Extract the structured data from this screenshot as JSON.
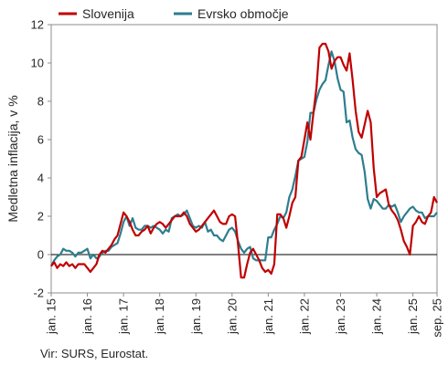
{
  "source_note": "Vir: SURS, Eurostat.",
  "chart_data": {
    "type": "line",
    "title": "",
    "xlabel": "",
    "ylabel": "Medletna inflacija, v %",
    "ylim": [
      -2,
      12
    ],
    "yticks": [
      -2,
      0,
      2,
      4,
      6,
      8,
      10,
      12
    ],
    "x_start": "2015-01",
    "x_end": "2025-09",
    "x_ticks": [
      {
        "label": "jan. 15",
        "date": "2015-01"
      },
      {
        "label": "jan. 16",
        "date": "2016-01"
      },
      {
        "label": "jan. 17",
        "date": "2017-01"
      },
      {
        "label": "jan. 18",
        "date": "2018-01"
      },
      {
        "label": "jan. 19",
        "date": "2019-01"
      },
      {
        "label": "jan. 20",
        "date": "2020-01"
      },
      {
        "label": "jan. 21",
        "date": "2021-01"
      },
      {
        "label": "jan. 22",
        "date": "2022-01"
      },
      {
        "label": "jan. 23",
        "date": "2023-01"
      },
      {
        "label": "jan. 24",
        "date": "2024-01"
      },
      {
        "label": "jan. 25",
        "date": "2025-01"
      },
      {
        "label": "sep. 25",
        "date": "2025-09"
      }
    ],
    "grid": false,
    "zero_line": true,
    "legend_position": "top",
    "series": [
      {
        "name": "Slovenija",
        "color": "#C00000",
        "points": [
          [
            "2015-01",
            -0.6
          ],
          [
            "2015-02",
            -0.4
          ],
          [
            "2015-03",
            -0.7
          ],
          [
            "2015-04",
            -0.5
          ],
          [
            "2015-05",
            -0.6
          ],
          [
            "2015-06",
            -0.4
          ],
          [
            "2015-07",
            -0.6
          ],
          [
            "2015-08",
            -0.5
          ],
          [
            "2015-09",
            -0.7
          ],
          [
            "2015-10",
            -0.5
          ],
          [
            "2015-11",
            -0.5
          ],
          [
            "2015-12",
            -0.5
          ],
          [
            "2016-01",
            -0.7
          ],
          [
            "2016-02",
            -0.9
          ],
          [
            "2016-03",
            -0.7
          ],
          [
            "2016-04",
            -0.5
          ],
          [
            "2016-05",
            0.0
          ],
          [
            "2016-06",
            0.2
          ],
          [
            "2016-07",
            0.1
          ],
          [
            "2016-08",
            0.3
          ],
          [
            "2016-09",
            0.5
          ],
          [
            "2016-10",
            0.8
          ],
          [
            "2016-11",
            1.0
          ],
          [
            "2016-12",
            1.6
          ],
          [
            "2017-01",
            2.2
          ],
          [
            "2017-02",
            2.0
          ],
          [
            "2017-03",
            1.7
          ],
          [
            "2017-04",
            1.3
          ],
          [
            "2017-05",
            1.0
          ],
          [
            "2017-06",
            1.0
          ],
          [
            "2017-07",
            1.2
          ],
          [
            "2017-08",
            1.3
          ],
          [
            "2017-09",
            1.5
          ],
          [
            "2017-10",
            1.1
          ],
          [
            "2017-11",
            1.4
          ],
          [
            "2017-12",
            1.6
          ],
          [
            "2018-01",
            1.7
          ],
          [
            "2018-02",
            1.6
          ],
          [
            "2018-03",
            1.4
          ],
          [
            "2018-04",
            1.6
          ],
          [
            "2018-05",
            1.8
          ],
          [
            "2018-06",
            2.0
          ],
          [
            "2018-07",
            2.0
          ],
          [
            "2018-08",
            2.0
          ],
          [
            "2018-09",
            2.2
          ],
          [
            "2018-10",
            2.0
          ],
          [
            "2018-11",
            1.6
          ],
          [
            "2018-12",
            1.4
          ],
          [
            "2019-01",
            1.2
          ],
          [
            "2019-02",
            1.3
          ],
          [
            "2019-03",
            1.5
          ],
          [
            "2019-04",
            1.7
          ],
          [
            "2019-05",
            1.9
          ],
          [
            "2019-06",
            2.1
          ],
          [
            "2019-07",
            2.3
          ],
          [
            "2019-08",
            2.0
          ],
          [
            "2019-09",
            1.7
          ],
          [
            "2019-10",
            1.6
          ],
          [
            "2019-11",
            1.6
          ],
          [
            "2019-12",
            2.0
          ],
          [
            "2020-01",
            2.1
          ],
          [
            "2020-02",
            2.0
          ],
          [
            "2020-03",
            0.5
          ],
          [
            "2020-04",
            -1.2
          ],
          [
            "2020-05",
            -1.2
          ],
          [
            "2020-06",
            -0.5
          ],
          [
            "2020-07",
            0.1
          ],
          [
            "2020-08",
            0.3
          ],
          [
            "2020-09",
            0.0
          ],
          [
            "2020-10",
            -0.3
          ],
          [
            "2020-11",
            -0.7
          ],
          [
            "2020-12",
            -0.9
          ],
          [
            "2021-01",
            -0.8
          ],
          [
            "2021-02",
            -1.0
          ],
          [
            "2021-03",
            -0.5
          ],
          [
            "2021-04",
            2.1
          ],
          [
            "2021-05",
            2.1
          ],
          [
            "2021-06",
            1.9
          ],
          [
            "2021-07",
            1.4
          ],
          [
            "2021-08",
            2.0
          ],
          [
            "2021-09",
            2.7
          ],
          [
            "2021-10",
            3.0
          ],
          [
            "2021-11",
            4.9
          ],
          [
            "2021-12",
            5.1
          ],
          [
            "2022-01",
            6.0
          ],
          [
            "2022-02",
            6.9
          ],
          [
            "2022-03",
            6.0
          ],
          [
            "2022-04",
            7.4
          ],
          [
            "2022-05",
            8.7
          ],
          [
            "2022-06",
            10.8
          ],
          [
            "2022-07",
            11.0
          ],
          [
            "2022-08",
            11.0
          ],
          [
            "2022-09",
            10.6
          ],
          [
            "2022-10",
            9.7
          ],
          [
            "2022-11",
            10.1
          ],
          [
            "2022-12",
            10.3
          ],
          [
            "2023-01",
            10.3
          ],
          [
            "2023-02",
            9.9
          ],
          [
            "2023-03",
            9.6
          ],
          [
            "2023-04",
            10.5
          ],
          [
            "2023-05",
            9.1
          ],
          [
            "2023-06",
            7.5
          ],
          [
            "2023-07",
            6.4
          ],
          [
            "2023-08",
            6.1
          ],
          [
            "2023-09",
            6.8
          ],
          [
            "2023-10",
            7.5
          ],
          [
            "2023-11",
            6.9
          ],
          [
            "2023-12",
            4.5
          ],
          [
            "2024-01",
            3.0
          ],
          [
            "2024-02",
            3.2
          ],
          [
            "2024-03",
            3.3
          ],
          [
            "2024-04",
            3.4
          ],
          [
            "2024-05",
            2.6
          ],
          [
            "2024-06",
            2.3
          ],
          [
            "2024-07",
            2.1
          ],
          [
            "2024-08",
            1.8
          ],
          [
            "2024-09",
            1.3
          ],
          [
            "2024-10",
            0.7
          ],
          [
            "2024-11",
            0.4
          ],
          [
            "2024-12",
            0.0
          ],
          [
            "2025-01",
            1.5
          ],
          [
            "2025-02",
            1.7
          ],
          [
            "2025-03",
            2.0
          ],
          [
            "2025-04",
            1.7
          ],
          [
            "2025-05",
            1.6
          ],
          [
            "2025-06",
            2.0
          ],
          [
            "2025-07",
            2.2
          ],
          [
            "2025-08",
            3.0
          ],
          [
            "2025-09",
            2.7
          ]
        ]
      },
      {
        "name": "Evrsko območje",
        "color": "#2E7D8F",
        "points": [
          [
            "2015-01",
            -0.6
          ],
          [
            "2015-02",
            -0.3
          ],
          [
            "2015-03",
            -0.1
          ],
          [
            "2015-04",
            0.0
          ],
          [
            "2015-05",
            0.3
          ],
          [
            "2015-06",
            0.2
          ],
          [
            "2015-07",
            0.2
          ],
          [
            "2015-08",
            0.1
          ],
          [
            "2015-09",
            -0.1
          ],
          [
            "2015-10",
            0.1
          ],
          [
            "2015-11",
            0.1
          ],
          [
            "2015-12",
            0.2
          ],
          [
            "2016-01",
            0.3
          ],
          [
            "2016-02",
            -0.2
          ],
          [
            "2016-03",
            0.0
          ],
          [
            "2016-04",
            -0.2
          ],
          [
            "2016-05",
            -0.1
          ],
          [
            "2016-06",
            0.1
          ],
          [
            "2016-07",
            0.2
          ],
          [
            "2016-08",
            0.2
          ],
          [
            "2016-09",
            0.4
          ],
          [
            "2016-10",
            0.5
          ],
          [
            "2016-11",
            0.6
          ],
          [
            "2016-12",
            1.1
          ],
          [
            "2017-01",
            1.7
          ],
          [
            "2017-02",
            2.0
          ],
          [
            "2017-03",
            1.5
          ],
          [
            "2017-04",
            1.9
          ],
          [
            "2017-05",
            1.4
          ],
          [
            "2017-06",
            1.3
          ],
          [
            "2017-07",
            1.3
          ],
          [
            "2017-08",
            1.5
          ],
          [
            "2017-09",
            1.5
          ],
          [
            "2017-10",
            1.4
          ],
          [
            "2017-11",
            1.5
          ],
          [
            "2017-12",
            1.4
          ],
          [
            "2018-01",
            1.3
          ],
          [
            "2018-02",
            1.1
          ],
          [
            "2018-03",
            1.3
          ],
          [
            "2018-04",
            1.2
          ],
          [
            "2018-05",
            1.9
          ],
          [
            "2018-06",
            2.0
          ],
          [
            "2018-07",
            2.1
          ],
          [
            "2018-08",
            2.0
          ],
          [
            "2018-09",
            2.1
          ],
          [
            "2018-10",
            2.3
          ],
          [
            "2018-11",
            1.9
          ],
          [
            "2018-12",
            1.5
          ],
          [
            "2019-01",
            1.4
          ],
          [
            "2019-02",
            1.5
          ],
          [
            "2019-03",
            1.4
          ],
          [
            "2019-04",
            1.7
          ],
          [
            "2019-05",
            1.2
          ],
          [
            "2019-06",
            1.3
          ],
          [
            "2019-07",
            1.0
          ],
          [
            "2019-08",
            1.0
          ],
          [
            "2019-09",
            0.8
          ],
          [
            "2019-10",
            0.7
          ],
          [
            "2019-11",
            1.0
          ],
          [
            "2019-12",
            1.3
          ],
          [
            "2020-01",
            1.4
          ],
          [
            "2020-02",
            1.2
          ],
          [
            "2020-03",
            0.7
          ],
          [
            "2020-04",
            0.3
          ],
          [
            "2020-05",
            0.1
          ],
          [
            "2020-06",
            0.3
          ],
          [
            "2020-07",
            0.4
          ],
          [
            "2020-08",
            -0.2
          ],
          [
            "2020-09",
            -0.3
          ],
          [
            "2020-10",
            -0.3
          ],
          [
            "2020-11",
            -0.3
          ],
          [
            "2020-12",
            -0.3
          ],
          [
            "2021-01",
            0.9
          ],
          [
            "2021-02",
            0.9
          ],
          [
            "2021-03",
            1.3
          ],
          [
            "2021-04",
            1.6
          ],
          [
            "2021-05",
            2.0
          ],
          [
            "2021-06",
            1.9
          ],
          [
            "2021-07",
            2.2
          ],
          [
            "2021-08",
            3.0
          ],
          [
            "2021-09",
            3.4
          ],
          [
            "2021-10",
            4.1
          ],
          [
            "2021-11",
            4.9
          ],
          [
            "2021-12",
            5.0
          ],
          [
            "2022-01",
            5.1
          ],
          [
            "2022-02",
            5.9
          ],
          [
            "2022-03",
            7.4
          ],
          [
            "2022-04",
            7.4
          ],
          [
            "2022-05",
            8.1
          ],
          [
            "2022-06",
            8.6
          ],
          [
            "2022-07",
            8.9
          ],
          [
            "2022-08",
            9.1
          ],
          [
            "2022-09",
            9.9
          ],
          [
            "2022-10",
            10.6
          ],
          [
            "2022-11",
            10.1
          ],
          [
            "2022-12",
            9.2
          ],
          [
            "2023-01",
            8.6
          ],
          [
            "2023-02",
            8.5
          ],
          [
            "2023-03",
            6.9
          ],
          [
            "2023-04",
            7.0
          ],
          [
            "2023-05",
            6.1
          ],
          [
            "2023-06",
            5.5
          ],
          [
            "2023-07",
            5.3
          ],
          [
            "2023-08",
            5.2
          ],
          [
            "2023-09",
            4.3
          ],
          [
            "2023-10",
            2.9
          ],
          [
            "2023-11",
            2.4
          ],
          [
            "2023-12",
            2.9
          ],
          [
            "2024-01",
            2.8
          ],
          [
            "2024-02",
            2.6
          ],
          [
            "2024-03",
            2.4
          ],
          [
            "2024-04",
            2.4
          ],
          [
            "2024-05",
            2.6
          ],
          [
            "2024-06",
            2.5
          ],
          [
            "2024-07",
            2.6
          ],
          [
            "2024-08",
            2.2
          ],
          [
            "2024-09",
            1.7
          ],
          [
            "2024-10",
            2.0
          ],
          [
            "2024-11",
            2.2
          ],
          [
            "2024-12",
            2.4
          ],
          [
            "2025-01",
            2.5
          ],
          [
            "2025-02",
            2.3
          ],
          [
            "2025-03",
            2.2
          ],
          [
            "2025-04",
            2.2
          ],
          [
            "2025-05",
            1.9
          ],
          [
            "2025-06",
            2.0
          ],
          [
            "2025-07",
            2.0
          ],
          [
            "2025-08",
            2.0
          ],
          [
            "2025-09",
            2.2
          ]
        ]
      }
    ]
  }
}
